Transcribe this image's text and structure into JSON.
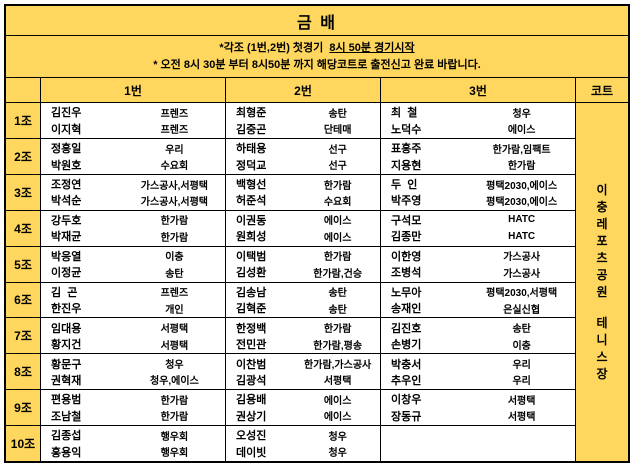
{
  "title": "금 배",
  "notice": {
    "line1_prefix": "*각조 (1번,2번) 첫경기  ",
    "line1_underlined": "8시 50분 경기시작",
    "line2": "* 오전 8시 30분 부터 8시50분 까지 해당코트로 출전신고 완료 바랍니다."
  },
  "header": {
    "corner": "",
    "col1": "1번",
    "col2": "2번",
    "col3": "3번",
    "court": "코트"
  },
  "court": {
    "venue_words": [
      "이충레포츠공원",
      "테니스장"
    ]
  },
  "colors": {
    "accent_yellow": "#FFD75E",
    "border_black": "#000000",
    "cell_white": "#FFFFFF"
  },
  "groups": [
    {
      "label": "1조",
      "matches": [
        {
          "players": [
            {
              "name": "김진우",
              "club": "프렌즈"
            },
            {
              "name": "이지혁",
              "club": "프렌즈"
            }
          ]
        },
        {
          "players": [
            {
              "name": "최형준",
              "club": "송탄"
            },
            {
              "name": "김중곤",
              "club": "단테매"
            }
          ]
        },
        {
          "players": [
            {
              "name": "최  철",
              "club": "청우"
            },
            {
              "name": "노덕수",
              "club": "에이스"
            }
          ]
        }
      ]
    },
    {
      "label": "2조",
      "matches": [
        {
          "players": [
            {
              "name": "정흥일",
              "club": "우리"
            },
            {
              "name": "박원호",
              "club": "수요회"
            }
          ]
        },
        {
          "players": [
            {
              "name": "하태용",
              "club": "선구"
            },
            {
              "name": "정덕교",
              "club": "선구"
            }
          ]
        },
        {
          "players": [
            {
              "name": "표흥주",
              "club": "한가람,임팩트"
            },
            {
              "name": "지용현",
              "club": "한가람"
            }
          ]
        }
      ]
    },
    {
      "label": "3조",
      "matches": [
        {
          "players": [
            {
              "name": "조정연",
              "club": "가스공사,서평택"
            },
            {
              "name": "박석순",
              "club": "가스공사,서평택"
            }
          ]
        },
        {
          "players": [
            {
              "name": "백형선",
              "club": "한가람"
            },
            {
              "name": "허준석",
              "club": "수요회"
            }
          ]
        },
        {
          "players": [
            {
              "name": "두  인",
              "club": "평택2030,에이스"
            },
            {
              "name": "박주영",
              "club": "평택2030,에이스"
            }
          ]
        }
      ]
    },
    {
      "label": "4조",
      "matches": [
        {
          "players": [
            {
              "name": "강두호",
              "club": "한가람"
            },
            {
              "name": "박재균",
              "club": "한가람"
            }
          ]
        },
        {
          "players": [
            {
              "name": "이권동",
              "club": "에이스"
            },
            {
              "name": "원희성",
              "club": "에이스"
            }
          ]
        },
        {
          "players": [
            {
              "name": "구석모",
              "club": "HATC"
            },
            {
              "name": "김종만",
              "club": "HATC"
            }
          ]
        }
      ]
    },
    {
      "label": "5조",
      "matches": [
        {
          "players": [
            {
              "name": "박응열",
              "club": "이충"
            },
            {
              "name": "이정균",
              "club": "송탄"
            }
          ]
        },
        {
          "players": [
            {
              "name": "이택범",
              "club": "한가람"
            },
            {
              "name": "김성환",
              "club": "한가람,건승"
            }
          ]
        },
        {
          "players": [
            {
              "name": "이한영",
              "club": "가스공사"
            },
            {
              "name": "조병석",
              "club": "가스공사"
            }
          ]
        }
      ]
    },
    {
      "label": "6조",
      "matches": [
        {
          "players": [
            {
              "name": "김  곤",
              "club": "프렌즈"
            },
            {
              "name": "한진우",
              "club": "개인"
            }
          ]
        },
        {
          "players": [
            {
              "name": "김송남",
              "club": "송탄"
            },
            {
              "name": "김혁준",
              "club": "송탄"
            }
          ]
        },
        {
          "players": [
            {
              "name": "노무아",
              "club": "평택2030,서평택"
            },
            {
              "name": "송재인",
              "club": "은실신협"
            }
          ]
        }
      ]
    },
    {
      "label": "7조",
      "matches": [
        {
          "players": [
            {
              "name": "임대용",
              "club": "서평택"
            },
            {
              "name": "황지건",
              "club": "서평택"
            }
          ]
        },
        {
          "players": [
            {
              "name": "한정백",
              "club": "한가람"
            },
            {
              "name": "전민관",
              "club": "한가람,평송"
            }
          ]
        },
        {
          "players": [
            {
              "name": "김진호",
              "club": "송탄"
            },
            {
              "name": "손병기",
              "club": "이충"
            }
          ]
        }
      ]
    },
    {
      "label": "8조",
      "matches": [
        {
          "players": [
            {
              "name": "황문구",
              "club": "청우"
            },
            {
              "name": "권혁재",
              "club": "청우,에이스"
            }
          ]
        },
        {
          "players": [
            {
              "name": "이찬범",
              "club": "한가람,가스공사"
            },
            {
              "name": "김광석",
              "club": "서평택"
            }
          ]
        },
        {
          "players": [
            {
              "name": "박충서",
              "club": "우리"
            },
            {
              "name": "추우인",
              "club": "우리"
            }
          ]
        }
      ]
    },
    {
      "label": "9조",
      "matches": [
        {
          "players": [
            {
              "name": "편용범",
              "club": "한가람"
            },
            {
              "name": "조남철",
              "club": "한가람"
            }
          ]
        },
        {
          "players": [
            {
              "name": "김용배",
              "club": "에이스"
            },
            {
              "name": "권상기",
              "club": "에이스"
            }
          ]
        },
        {
          "players": [
            {
              "name": "이창우",
              "club": "서평택"
            },
            {
              "name": "장동규",
              "club": "서평택"
            }
          ]
        }
      ]
    },
    {
      "label": "10조",
      "matches": [
        {
          "players": [
            {
              "name": "김종섭",
              "club": "행우회"
            },
            {
              "name": "홍용익",
              "club": "행우회"
            }
          ]
        },
        {
          "players": [
            {
              "name": "오성진",
              "club": "청우"
            },
            {
              "name": "데이빗",
              "club": "청우"
            }
          ]
        },
        {
          "players": [
            {
              "name": "",
              "club": ""
            },
            {
              "name": "",
              "club": ""
            }
          ]
        }
      ]
    }
  ]
}
